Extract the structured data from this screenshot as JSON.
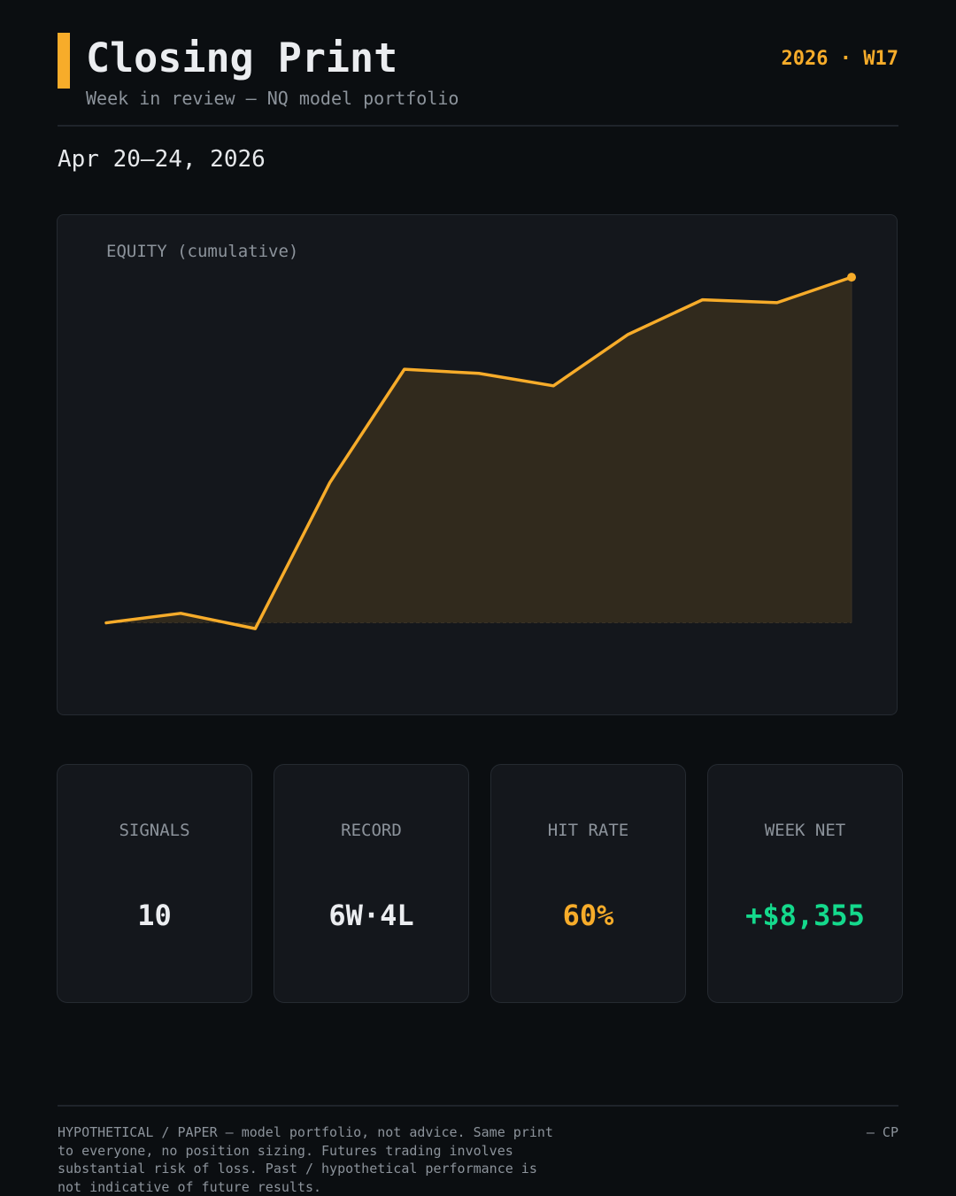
{
  "header": {
    "title": "Closing Print",
    "subtitle": "Week in review — NQ model portfolio",
    "week_tag": "2026 · W17",
    "date_range": "Apr 20–24, 2026"
  },
  "colors": {
    "accent": "#f7ac2a",
    "positive": "#14d98c",
    "background": "#0b0e11",
    "card": "#14171c"
  },
  "chart_data": {
    "type": "line",
    "label": "EQUITY (cumulative)",
    "x": [
      1,
      2,
      3,
      4,
      5,
      6,
      7,
      8,
      9,
      10,
      11
    ],
    "series": [
      {
        "values": [
          0,
          230,
          -140,
          3390,
          6130,
          6030,
          5730,
          6970,
          7810,
          7740,
          8355
        ]
      }
    ],
    "ylim": [
      -1700,
      9000
    ],
    "baseline": 0,
    "area_fill": true,
    "end_marker": true,
    "grid": false
  },
  "stats": [
    {
      "label": "SIGNALS",
      "value": "10",
      "tone": "neutral"
    },
    {
      "label": "RECORD",
      "value": "6W·4L",
      "tone": "neutral"
    },
    {
      "label": "HIT RATE",
      "value": "60%",
      "tone": "amber"
    },
    {
      "label": "WEEK NET",
      "value": "+$8,355",
      "tone": "green"
    }
  ],
  "footer": {
    "disclaimer": "HYPOTHETICAL / PAPER — model portfolio, not advice. Same print to everyone, no position sizing. Futures trading involves substantial risk of loss. Past / hypothetical performance is not indicative of future results.",
    "signature": "— CP"
  }
}
